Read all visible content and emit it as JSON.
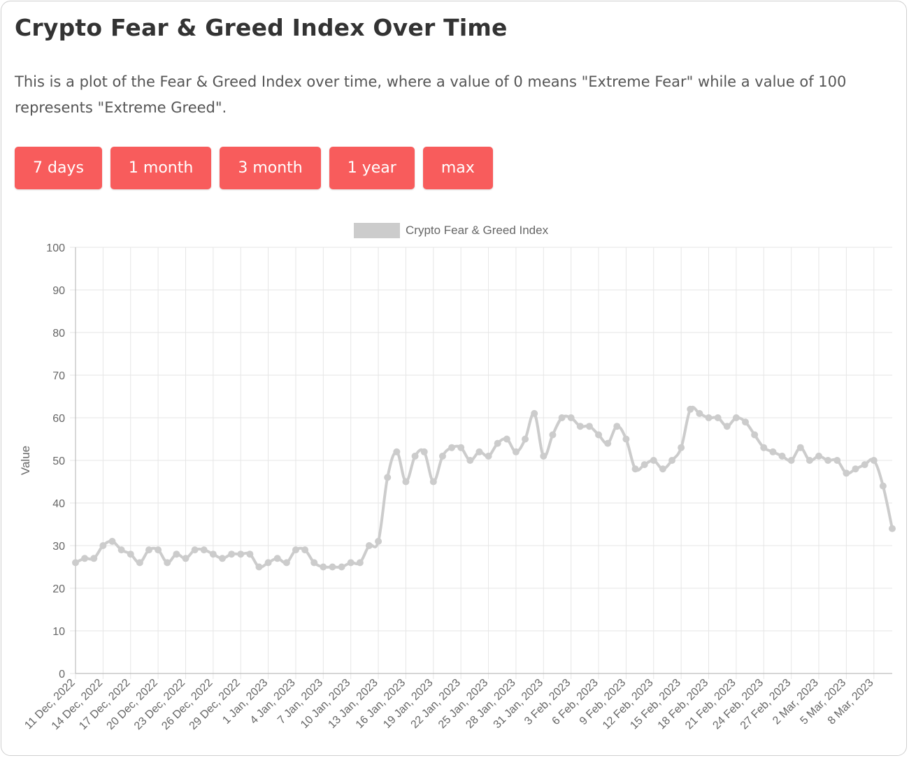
{
  "header": {
    "title": "Crypto Fear & Greed Index Over Time",
    "description": "This is a plot of the Fear & Greed Index over time, where a value of 0 means \"Extreme Fear\" while a value of 100 represents \"Extreme Greed\"."
  },
  "range_buttons": [
    "7 days",
    "1 month",
    "3 month",
    "1 year",
    "max"
  ],
  "colors": {
    "button": "#f85c5c",
    "line": "#cccccc",
    "grid": "#e6e6e6",
    "axis_text": "#666666"
  },
  "chart_data": {
    "type": "line",
    "legend": "Crypto Fear & Greed Index",
    "legend_position": "top-center",
    "ylabel": "Value",
    "xlabel": "",
    "ylim": [
      0,
      100
    ],
    "yticks": [
      0,
      10,
      20,
      30,
      40,
      50,
      60,
      70,
      80,
      90,
      100
    ],
    "grid": true,
    "tick_labels": [
      "11 Dec, 2022",
      "14 Dec, 2022",
      "17 Dec, 2022",
      "20 Dec, 2022",
      "23 Dec, 2022",
      "26 Dec, 2022",
      "29 Dec, 2022",
      "1 Jan, 2023",
      "4 Jan, 2023",
      "7 Jan, 2023",
      "10 Jan, 2023",
      "13 Jan, 2023",
      "16 Jan, 2023",
      "19 Jan, 2023",
      "22 Jan, 2023",
      "25 Jan, 2023",
      "28 Jan, 2023",
      "31 Jan, 2023",
      "3 Feb, 2023",
      "6 Feb, 2023",
      "9 Feb, 2023",
      "12 Feb, 2023",
      "15 Feb, 2023",
      "18 Feb, 2023",
      "21 Feb, 2023",
      "24 Feb, 2023",
      "27 Feb, 2023",
      "2 Mar, 2023",
      "5 Mar, 2023",
      "8 Mar, 2023"
    ],
    "values": [
      26,
      27,
      27,
      30,
      31,
      29,
      28,
      26,
      29,
      29,
      26,
      28,
      27,
      29,
      29,
      28,
      27,
      28,
      28,
      28,
      25,
      26,
      27,
      26,
      29,
      29,
      26,
      25,
      25,
      25,
      26,
      26,
      30,
      31,
      46,
      52,
      45,
      51,
      52,
      45,
      51,
      53,
      53,
      50,
      52,
      51,
      54,
      55,
      52,
      55,
      61,
      51,
      56,
      60,
      60,
      58,
      58,
      56,
      54,
      58,
      55,
      48,
      49,
      50,
      48,
      50,
      53,
      62,
      61,
      60,
      60,
      58,
      60,
      59,
      56,
      53,
      52,
      51,
      50,
      53,
      50,
      51,
      50,
      50,
      47,
      48,
      49,
      50,
      44,
      34
    ]
  }
}
